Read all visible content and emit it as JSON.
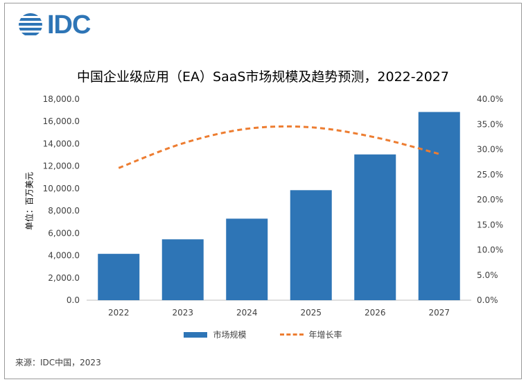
{
  "logo": {
    "text": "IDC",
    "color": "#2e75b6"
  },
  "chart_data": {
    "type": "bar",
    "title": "中国企业级应用（EA）SaaS市场规模及趋势预测，2022-2027",
    "ylabel": "单位：百万美元",
    "categories": [
      "2022",
      "2023",
      "2024",
      "2025",
      "2026",
      "2027"
    ],
    "series": [
      {
        "name": "市场规模",
        "kind": "bar",
        "axis": "left",
        "color": "#2e75b6",
        "values": [
          4150,
          5450,
          7300,
          9850,
          13050,
          16850
        ]
      },
      {
        "name": "年增长率",
        "kind": "line",
        "axis": "right",
        "style": "dashed",
        "color": "#ed7d31",
        "values": [
          26.3,
          31.2,
          34.1,
          34.4,
          32.4,
          29.1
        ]
      }
    ],
    "ylim": [
      0,
      18000
    ],
    "y2lim": [
      0,
      40
    ],
    "yticks": [
      "0.0",
      "2,000.0",
      "4,000.0",
      "6,000.0",
      "8,000.0",
      "10,000.0",
      "12,000.0",
      "14,000.0",
      "16,000.0",
      "18,000.0"
    ],
    "y2ticks": [
      "0.0%",
      "5.0%",
      "10.0%",
      "15.0%",
      "20.0%",
      "25.0%",
      "30.0%",
      "35.0%",
      "40.0%"
    ],
    "legend_position": "bottom",
    "grid": false
  },
  "source": "来源：IDC中国，2023"
}
